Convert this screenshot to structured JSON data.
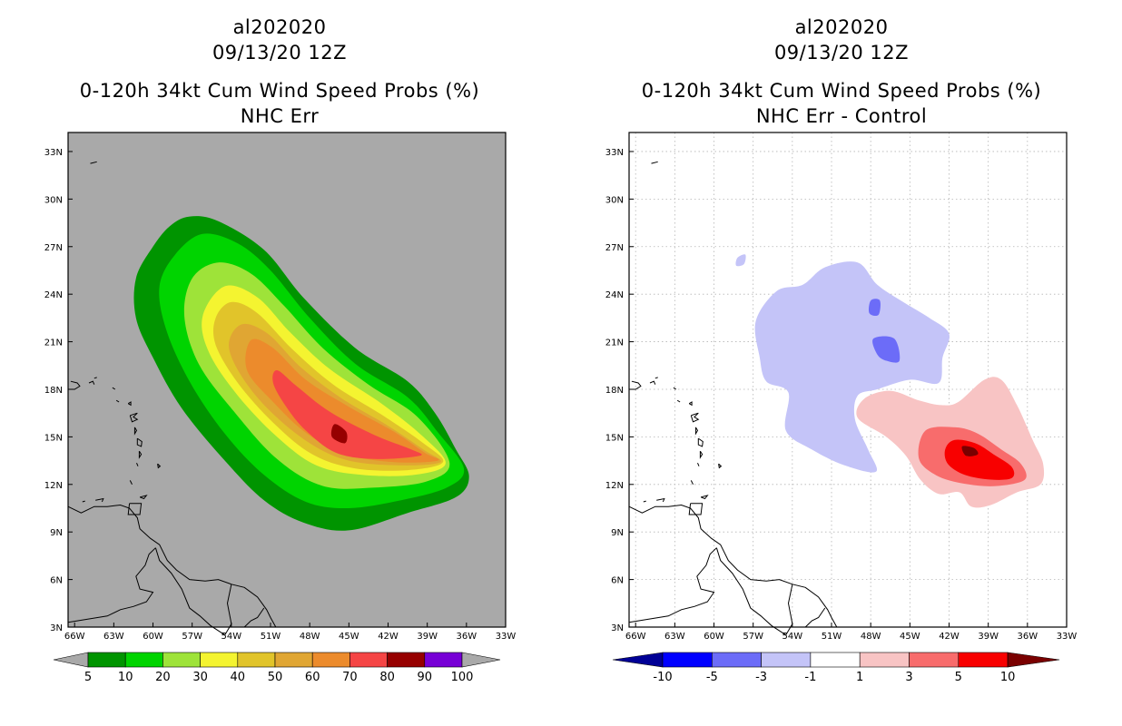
{
  "chart_data": [
    {
      "type": "heatmap",
      "title": [
        "al202020",
        "09/13/20 12Z",
        "0-120h 34kt Cum Wind Speed Probs (%)",
        "NHC Err"
      ],
      "x_ticks": [
        "66W",
        "63W",
        "60W",
        "57W",
        "54W",
        "51W",
        "48W",
        "45W",
        "42W",
        "39W",
        "36W",
        "33W"
      ],
      "x_values": [
        -66,
        -63,
        -60,
        -57,
        -54,
        -51,
        -48,
        -45,
        -42,
        -39,
        -36,
        -33
      ],
      "y_ticks": [
        "3N",
        "6N",
        "9N",
        "12N",
        "15N",
        "18N",
        "21N",
        "24N",
        "27N",
        "30N",
        "33N"
      ],
      "y_values": [
        3,
        6,
        9,
        12,
        15,
        18,
        21,
        24,
        27,
        30,
        33
      ],
      "xlim": [
        -66.5,
        -33
      ],
      "ylim": [
        3,
        34.2
      ],
      "grid": false,
      "background_color": "#a9a9a9",
      "colorbar": {
        "labels": [
          "5",
          "10",
          "20",
          "30",
          "40",
          "50",
          "60",
          "70",
          "80",
          "90",
          "100"
        ],
        "colors": [
          "#009400",
          "#00d400",
          "#9ee339",
          "#f4f430",
          "#e1c42a",
          "#e0a633",
          "#ec8b2c",
          "#f54545",
          "#960000",
          "#7700d6"
        ],
        "extend_color": "#a9a9a9"
      },
      "contours": [
        {
          "level": 5,
          "color": "#009400",
          "points": [
            [
              -57.2,
              28.9
            ],
            [
              -55,
              28.6
            ],
            [
              -51.5,
              26.8
            ],
            [
              -48.5,
              23.8
            ],
            [
              -44.5,
              20.6
            ],
            [
              -40.5,
              18.5
            ],
            [
              -38.4,
              16.5
            ],
            [
              -36.8,
              14.2
            ],
            [
              -35.8,
              12.5
            ],
            [
              -36.8,
              11.2
            ],
            [
              -40.5,
              10.2
            ],
            [
              -45,
              9.1
            ],
            [
              -48.5,
              9.6
            ],
            [
              -51.5,
              11
            ],
            [
              -54.5,
              13.5
            ],
            [
              -57.8,
              16.8
            ],
            [
              -60,
              20
            ],
            [
              -61.3,
              22.5
            ],
            [
              -61.3,
              25
            ],
            [
              -60,
              27
            ],
            [
              -58.7,
              28.3
            ]
          ]
        },
        {
          "level": 10,
          "color": "#00d400",
          "points": [
            [
              -56.2,
              27.8
            ],
            [
              -53.5,
              27.2
            ],
            [
              -51,
              25.5
            ],
            [
              -48,
              22.5
            ],
            [
              -44.5,
              19.6
            ],
            [
              -40.5,
              17.5
            ],
            [
              -38.2,
              15.3
            ],
            [
              -36.2,
              13
            ],
            [
              -37.5,
              11.8
            ],
            [
              -41,
              11
            ],
            [
              -45,
              10.5
            ],
            [
              -48.3,
              10.9
            ],
            [
              -51.5,
              12.6
            ],
            [
              -54.5,
              15.2
            ],
            [
              -57.2,
              18.5
            ],
            [
              -59,
              21.8
            ],
            [
              -59.5,
              24.5
            ],
            [
              -58.3,
              26.5
            ]
          ]
        },
        {
          "level": 20,
          "color": "#9ee339",
          "points": [
            [
              -55,
              26
            ],
            [
              -52.5,
              25.3
            ],
            [
              -50,
              23.3
            ],
            [
              -47,
              20.6
            ],
            [
              -43.5,
              18.3
            ],
            [
              -39.8,
              16.3
            ],
            [
              -37.3,
              13.4
            ],
            [
              -39,
              12.2
            ],
            [
              -43,
              11.8
            ],
            [
              -47,
              11.9
            ],
            [
              -50.5,
              13.6
            ],
            [
              -53.8,
              16.6
            ],
            [
              -56.5,
              19.6
            ],
            [
              -57.6,
              22.6
            ],
            [
              -57,
              25
            ]
          ]
        },
        {
          "level": 30,
          "color": "#f4f430",
          "points": [
            [
              -54.5,
              24.5
            ],
            [
              -52,
              23.8
            ],
            [
              -49.5,
              21.6
            ],
            [
              -46.5,
              19.3
            ],
            [
              -42.5,
              17.1
            ],
            [
              -39.3,
              15
            ],
            [
              -37.6,
              13.3
            ],
            [
              -40,
              12.6
            ],
            [
              -44,
              12.6
            ],
            [
              -47.5,
              13.2
            ],
            [
              -50.5,
              15
            ],
            [
              -53.5,
              17.6
            ],
            [
              -55.7,
              20.3
            ],
            [
              -56.2,
              22.6
            ]
          ]
        },
        {
          "level": 40,
          "color": "#e1c42a",
          "points": [
            [
              -54,
              23.5
            ],
            [
              -52,
              22.8
            ],
            [
              -49.3,
              20.5
            ],
            [
              -46.2,
              18.3
            ],
            [
              -42.5,
              16.4
            ],
            [
              -39.3,
              14.6
            ],
            [
              -37.8,
              13.4
            ],
            [
              -40.5,
              12.9
            ],
            [
              -44.5,
              13
            ],
            [
              -47.8,
              13.9
            ],
            [
              -50.8,
              15.9
            ],
            [
              -53.5,
              18.4
            ],
            [
              -55.2,
              20.8
            ],
            [
              -55.2,
              22.5
            ]
          ]
        },
        {
          "level": 50,
          "color": "#e0a633",
          "points": [
            [
              -53.2,
              22.1
            ],
            [
              -51.2,
              21.5
            ],
            [
              -48.7,
              19.4
            ],
            [
              -45.5,
              17.4
            ],
            [
              -42,
              15.7
            ],
            [
              -39.3,
              14.2
            ],
            [
              -38,
              13.4
            ],
            [
              -41,
              13.2
            ],
            [
              -45,
              13.5
            ],
            [
              -48,
              14.6
            ],
            [
              -51,
              16.6
            ],
            [
              -53.2,
              18.8
            ],
            [
              -54.2,
              20.8
            ]
          ]
        },
        {
          "level": 60,
          "color": "#ec8b2c",
          "points": [
            [
              -52.5,
              21.1
            ],
            [
              -50.8,
              20.6
            ],
            [
              -48.3,
              18.6
            ],
            [
              -45,
              16.9
            ],
            [
              -41.5,
              15.3
            ],
            [
              -39.2,
              14
            ],
            [
              -38.2,
              13.5
            ],
            [
              -41.5,
              13.4
            ],
            [
              -45.2,
              13.9
            ],
            [
              -48.2,
              15.2
            ],
            [
              -50.8,
              17.2
            ],
            [
              -52.8,
              19.2
            ]
          ]
        },
        {
          "level": 70,
          "color": "#f54545",
          "points": [
            [
              -50.5,
              19.2
            ],
            [
              -49,
              18.2
            ],
            [
              -46.5,
              16.6
            ],
            [
              -43,
              15.1
            ],
            [
              -40.2,
              14.2
            ],
            [
              -39.6,
              13.8
            ],
            [
              -43,
              13.6
            ],
            [
              -46,
              14
            ],
            [
              -48.3,
              15.4
            ],
            [
              -49.8,
              16.9
            ],
            [
              -50.8,
              18.4
            ]
          ]
        },
        {
          "level": 80,
          "color": "#960000",
          "points": [
            [
              -46.1,
              15.8
            ],
            [
              -45.2,
              15.3
            ],
            [
              -45.3,
              14.6
            ],
            [
              -46.3,
              15
            ]
          ]
        }
      ]
    },
    {
      "type": "heatmap",
      "title": [
        "al202020",
        "09/13/20 12Z",
        "0-120h 34kt Cum Wind Speed Probs (%)",
        "NHC Err - Control"
      ],
      "x_ticks": [
        "66W",
        "63W",
        "60W",
        "57W",
        "54W",
        "51W",
        "48W",
        "45W",
        "42W",
        "39W",
        "36W",
        "33W"
      ],
      "x_values": [
        -66,
        -63,
        -60,
        -57,
        -54,
        -51,
        -48,
        -45,
        -42,
        -39,
        -36,
        -33
      ],
      "y_ticks": [
        "3N",
        "6N",
        "9N",
        "12N",
        "15N",
        "18N",
        "21N",
        "24N",
        "27N",
        "30N",
        "33N"
      ],
      "y_values": [
        3,
        6,
        9,
        12,
        15,
        18,
        21,
        24,
        27,
        30,
        33
      ],
      "xlim": [
        -66.5,
        -33
      ],
      "ylim": [
        3,
        34.2
      ],
      "grid": true,
      "background_color": "#ffffff",
      "colorbar": {
        "labels": [
          "-10",
          "-5",
          "-3",
          "-1",
          "1",
          "3",
          "5",
          "10"
        ],
        "colors": [
          "#0000ff",
          "#6c6cf8",
          "#c4c4f8",
          "#ffffff",
          "#f8c4c4",
          "#f86c6c",
          "#f80000"
        ],
        "extend_low": "#000096",
        "extend_high": "#7a0000"
      },
      "contours": [
        {
          "level": -1,
          "color": "#c4c4f8",
          "points": [
            [
              -51.5,
              25.7
            ],
            [
              -49,
              26
            ],
            [
              -47.5,
              24.6
            ],
            [
              -45.5,
              23.5
            ],
            [
              -43.5,
              22.5
            ],
            [
              -42,
              21.5
            ],
            [
              -42.5,
              20
            ],
            [
              -42.8,
              18.4
            ],
            [
              -45,
              18.6
            ],
            [
              -47.5,
              18
            ],
            [
              -49,
              17.6
            ],
            [
              -49.2,
              16.1
            ],
            [
              -48.2,
              14.2
            ],
            [
              -47.6,
              12.8
            ],
            [
              -50,
              13.2
            ],
            [
              -52.5,
              14.2
            ],
            [
              -54.5,
              15.4
            ],
            [
              -54.3,
              17.8
            ],
            [
              -56,
              18.5
            ],
            [
              -56.5,
              20
            ],
            [
              -56.8,
              22.3
            ],
            [
              -55.2,
              24.2
            ],
            [
              -53.2,
              24.6
            ]
          ]
        },
        {
          "level": -3,
          "color": "#6c6cf8",
          "points": [
            [
              -47.8,
              21.2
            ],
            [
              -46.2,
              21.2
            ],
            [
              -45.8,
              19.8
            ],
            [
              -46.8,
              19.8
            ],
            [
              -47.5,
              20.2
            ]
          ]
        },
        {
          "level": -3,
          "color": "#6c6cf8",
          "points": [
            [
              -48,
              23.6
            ],
            [
              -47.3,
              23.6
            ],
            [
              -47.4,
              22.7
            ],
            [
              -48.1,
              22.8
            ]
          ]
        },
        {
          "level": -1,
          "color": "#c4c4f8",
          "points": [
            [
              -58.2,
              26.3
            ],
            [
              -57.6,
              26.5
            ],
            [
              -57.7,
              25.9
            ],
            [
              -58.3,
              25.8
            ]
          ]
        },
        {
          "level": 1,
          "color": "#f8c4c4",
          "points": [
            [
              -48.5,
              17.4
            ],
            [
              -46.5,
              17.9
            ],
            [
              -44.3,
              17.3
            ],
            [
              -42.6,
              17
            ],
            [
              -41.3,
              17.2
            ],
            [
              -39.3,
              18.6
            ],
            [
              -38,
              18.6
            ],
            [
              -36.8,
              17
            ],
            [
              -35.6,
              14.8
            ],
            [
              -34.8,
              13.3
            ],
            [
              -35,
              12
            ],
            [
              -36.8,
              11.5
            ],
            [
              -38.8,
              10.7
            ],
            [
              -40.3,
              10.6
            ],
            [
              -41.2,
              11.5
            ],
            [
              -42.8,
              11.4
            ],
            [
              -44.2,
              12.3
            ],
            [
              -45.3,
              13.8
            ],
            [
              -46.8,
              15
            ],
            [
              -49,
              16.2
            ]
          ]
        },
        {
          "level": 3,
          "color": "#f86c6c",
          "points": [
            [
              -43.8,
              15.4
            ],
            [
              -41.5,
              15.6
            ],
            [
              -39.8,
              15.2
            ],
            [
              -38,
              14.2
            ],
            [
              -36.5,
              13.3
            ],
            [
              -36.2,
              12.3
            ],
            [
              -38.3,
              11.9
            ],
            [
              -40.5,
              12
            ],
            [
              -42.8,
              12.5
            ],
            [
              -44.3,
              13.6
            ]
          ]
        },
        {
          "level": 5,
          "color": "#f80000",
          "points": [
            [
              -41.6,
              14.8
            ],
            [
              -40,
              14.6
            ],
            [
              -38.6,
              13.9
            ],
            [
              -37.2,
              13.1
            ],
            [
              -37.2,
              12.4
            ],
            [
              -38.8,
              12.3
            ],
            [
              -40.8,
              12.6
            ],
            [
              -42.1,
              13.3
            ],
            [
              -42.3,
              14.2
            ]
          ]
        },
        {
          "level": 10,
          "color": "#7a0000",
          "points": [
            [
              -41,
              14.4
            ],
            [
              -40.1,
              14.3
            ],
            [
              -39.8,
              13.9
            ],
            [
              -40.7,
              13.8
            ]
          ]
        }
      ]
    }
  ]
}
